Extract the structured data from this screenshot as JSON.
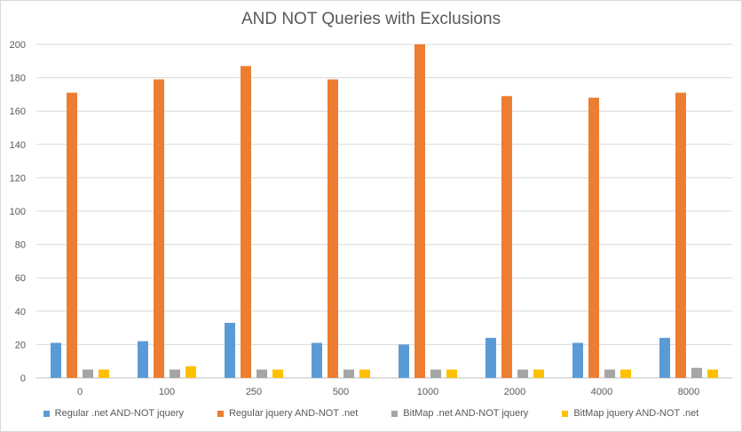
{
  "chart_data": {
    "type": "bar",
    "title": "AND NOT Queries with Exclusions",
    "xlabel": "",
    "ylabel": "",
    "categories": [
      "0",
      "100",
      "250",
      "500",
      "1000",
      "2000",
      "4000",
      "8000"
    ],
    "ylim": [
      0,
      200
    ],
    "yticks": [
      0,
      20,
      40,
      60,
      80,
      100,
      120,
      140,
      160,
      180,
      200
    ],
    "grid": true,
    "legend_position": "bottom",
    "series": [
      {
        "name": "Regular .net AND-NOT jquery",
        "color": "#5b9bd5",
        "values": [
          21,
          22,
          33,
          21,
          20,
          24,
          21,
          24
        ]
      },
      {
        "name": "Regular jquery AND-NOT .net",
        "color": "#ed7d31",
        "values": [
          171,
          179,
          187,
          179,
          200,
          169,
          168,
          171
        ]
      },
      {
        "name": "BitMap .net AND-NOT jquery",
        "color": "#a5a5a5",
        "values": [
          5,
          5,
          5,
          5,
          5,
          5,
          5,
          6
        ]
      },
      {
        "name": "BitMap jquery AND-NOT .net",
        "color": "#ffc000",
        "values": [
          5,
          7,
          5,
          5,
          5,
          5,
          5,
          5
        ]
      }
    ]
  }
}
